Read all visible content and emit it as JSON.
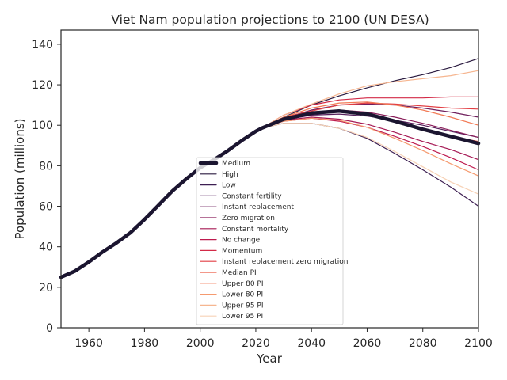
{
  "chart_data": {
    "type": "line",
    "title": "Viet Nam population projections to 2100 (UN DESA)",
    "xlabel": "Year",
    "ylabel": "Population (millions)",
    "xlim": [
      1950,
      2100
    ],
    "ylim": [
      0,
      147
    ],
    "xticks": [
      1960,
      1980,
      2000,
      2020,
      2040,
      2060,
      2080,
      2100
    ],
    "yticks": [
      0,
      20,
      40,
      60,
      80,
      100,
      120,
      140
    ],
    "grid": false,
    "legend_position": "center-bottom",
    "series": [
      {
        "name": "Medium",
        "color": "#1b1530",
        "x": [
          1950,
          1955,
          1960,
          1965,
          1970,
          1975,
          1980,
          1985,
          1990,
          1995,
          2000,
          2005,
          2010,
          2015,
          2020,
          2022,
          2030,
          2040,
          2050,
          2060,
          2070,
          2080,
          2090,
          2100
        ],
        "y": [
          25,
          28,
          32.5,
          37.5,
          42,
          47,
          53.5,
          60.5,
          67.5,
          73.5,
          79,
          83,
          87.5,
          92.5,
          97,
          98.5,
          103,
          106,
          107,
          105.5,
          102,
          98,
          94.5,
          91
        ]
      },
      {
        "name": "High",
        "color": "#2b1b40",
        "x": [
          2022,
          2030,
          2040,
          2050,
          2060,
          2070,
          2080,
          2090,
          2100
        ],
        "y": [
          98.5,
          104,
          110,
          114.5,
          118.5,
          122,
          125,
          128.5,
          133
        ]
      },
      {
        "name": "Low",
        "color": "#3d1f52",
        "x": [
          2022,
          2030,
          2040,
          2050,
          2060,
          2070,
          2080,
          2090,
          2100
        ],
        "y": [
          98.5,
          101,
          101,
          98.5,
          93.5,
          86,
          78,
          69.5,
          60
        ]
      },
      {
        "name": "Constant fertility",
        "color": "#541e5b",
        "x": [
          2022,
          2030,
          2040,
          2050,
          2060,
          2070,
          2080,
          2090,
          2100
        ],
        "y": [
          98.5,
          102.5,
          105,
          105.5,
          104.5,
          102.5,
          100,
          97,
          94
        ]
      },
      {
        "name": "Instant replacement",
        "color": "#6f1f5d",
        "x": [
          2022,
          2030,
          2040,
          2050,
          2060,
          2070,
          2080,
          2090,
          2100
        ],
        "y": [
          98.5,
          103.5,
          107.5,
          110,
          110.5,
          110,
          108.5,
          106.5,
          104
        ]
      },
      {
        "name": "Zero migration",
        "color": "#8a1d5a",
        "x": [
          2022,
          2030,
          2040,
          2050,
          2060,
          2070,
          2080,
          2090,
          2100
        ],
        "y": [
          98.5,
          103.5,
          106.5,
          107.5,
          106.5,
          104,
          101,
          97.5,
          94
        ]
      },
      {
        "name": "Constant mortality",
        "color": "#a51854",
        "x": [
          2022,
          2030,
          2040,
          2050,
          2060,
          2070,
          2080,
          2090,
          2100
        ],
        "y": [
          98.5,
          102.5,
          104,
          103,
          100.5,
          96.5,
          92,
          88,
          83
        ]
      },
      {
        "name": "No change",
        "color": "#be1a4e",
        "x": [
          2022,
          2030,
          2040,
          2050,
          2060,
          2070,
          2080,
          2090,
          2100
        ],
        "y": [
          98.5,
          102,
          103.5,
          102,
          99,
          94.5,
          89.5,
          84,
          78
        ]
      },
      {
        "name": "Momentum",
        "color": "#d32a47",
        "x": [
          2022,
          2030,
          2040,
          2050,
          2060,
          2070,
          2080,
          2090,
          2100
        ],
        "y": [
          98.5,
          105,
          110,
          112.5,
          113.5,
          113.5,
          113.5,
          114,
          114
        ]
      },
      {
        "name": "Instant replacement zero migration",
        "color": "#e23f44",
        "x": [
          2022,
          2030,
          2040,
          2050,
          2060,
          2070,
          2080,
          2090,
          2100
        ],
        "y": [
          98.5,
          104,
          107,
          110,
          111,
          110.5,
          109.5,
          108.5,
          108
        ]
      },
      {
        "name": "Median PI",
        "color": "#ec5a45",
        "x": [
          2022,
          2030,
          2040,
          2050,
          2060,
          2070,
          2080,
          2090,
          2100
        ],
        "y": [
          98.5,
          103,
          106,
          107,
          105.5,
          102,
          98,
          94.5,
          92
        ]
      },
      {
        "name": "Upper 80 PI",
        "color": "#f27a55",
        "x": [
          2022,
          2030,
          2040,
          2050,
          2060,
          2070,
          2080,
          2090,
          2100
        ],
        "y": [
          98.5,
          104,
          108.5,
          111,
          111.5,
          110,
          107.5,
          104,
          100
        ]
      },
      {
        "name": "Lower 80 PI",
        "color": "#f59a6f",
        "x": [
          2022,
          2030,
          2040,
          2050,
          2060,
          2070,
          2080,
          2090,
          2100
        ],
        "y": [
          98.5,
          102,
          103.5,
          102.5,
          99,
          93.5,
          87.5,
          81,
          75
        ]
      },
      {
        "name": "Upper 95 PI",
        "color": "#f6b690",
        "x": [
          2022,
          2030,
          2040,
          2050,
          2060,
          2070,
          2080,
          2090,
          2100
        ],
        "y": [
          98.5,
          105,
          110.5,
          115.5,
          119.5,
          121.5,
          123,
          124.5,
          127
        ]
      },
      {
        "name": "Lower 95 PI",
        "color": "#f7d2b6",
        "x": [
          2022,
          2030,
          2040,
          2050,
          2060,
          2070,
          2080,
          2090,
          2100
        ],
        "y": [
          98.5,
          101,
          101,
          98.5,
          94,
          87,
          79.5,
          72,
          66
        ]
      }
    ]
  }
}
